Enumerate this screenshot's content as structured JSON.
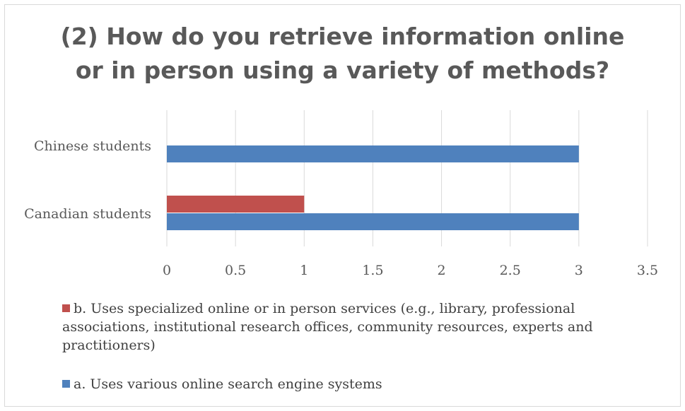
{
  "chart_data": {
    "type": "bar",
    "orientation": "horizontal",
    "title_lines": [
      "(2) How do you retrieve information online",
      "or in person using a variety of methods?"
    ],
    "categories": [
      "Canadian students",
      "Chinese students"
    ],
    "series": [
      {
        "name": "a. Uses various online search engine systems",
        "values": [
          3,
          3
        ],
        "color": "#4f81bd"
      },
      {
        "name": "b. Uses specialized online or in person services (e.g., library, professional associations, institutional research offices, community resources, experts and practitioners)",
        "values": [
          1,
          0
        ],
        "color": "#c0504d"
      }
    ],
    "xlim": [
      0,
      3.5
    ],
    "xticks": [
      "0",
      "0.5",
      "1",
      "1.5",
      "2",
      "2.5",
      "3",
      "3.5"
    ],
    "grid": true,
    "legend_position": "bottom"
  }
}
